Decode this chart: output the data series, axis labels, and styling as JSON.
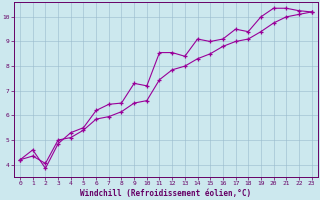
{
  "xlabel": "Windchill (Refroidissement éolien,°C)",
  "ylabel": "",
  "bg_color": "#cce8ee",
  "line_color": "#990099",
  "marker_color": "#990099",
  "grid_color": "#99bbcc",
  "axis_color": "#660066",
  "xlim": [
    -0.5,
    23.5
  ],
  "ylim": [
    3.5,
    10.6
  ],
  "xticks": [
    0,
    1,
    2,
    3,
    4,
    5,
    6,
    7,
    8,
    9,
    10,
    11,
    12,
    13,
    14,
    15,
    16,
    17,
    18,
    19,
    20,
    21,
    22,
    23
  ],
  "yticks": [
    4,
    5,
    6,
    7,
    8,
    9,
    10
  ],
  "series1_x": [
    0,
    1,
    2,
    3,
    4,
    5,
    6,
    7,
    8,
    9,
    10,
    11,
    12,
    13,
    14,
    15,
    16,
    17,
    18,
    19,
    20,
    21,
    22,
    23
  ],
  "series1_y": [
    4.2,
    4.6,
    3.85,
    4.85,
    5.3,
    5.5,
    6.2,
    6.45,
    6.5,
    7.3,
    7.2,
    8.55,
    8.55,
    8.4,
    9.1,
    9.0,
    9.1,
    9.5,
    9.4,
    10.0,
    10.35,
    10.35,
    10.25,
    10.2
  ],
  "series2_x": [
    0,
    1,
    2,
    3,
    4,
    5,
    6,
    7,
    8,
    9,
    10,
    11,
    12,
    13,
    14,
    15,
    16,
    17,
    18,
    19,
    20,
    21,
    22,
    23
  ],
  "series2_y": [
    4.2,
    4.35,
    4.05,
    5.0,
    5.1,
    5.4,
    5.85,
    5.95,
    6.15,
    6.5,
    6.6,
    7.45,
    7.85,
    8.0,
    8.3,
    8.5,
    8.8,
    9.0,
    9.1,
    9.4,
    9.75,
    10.0,
    10.1,
    10.2
  ],
  "font_family": "monospace",
  "tick_fontsize": 4.5,
  "label_fontsize": 5.5,
  "linewidth": 0.8,
  "markersize": 3.0
}
